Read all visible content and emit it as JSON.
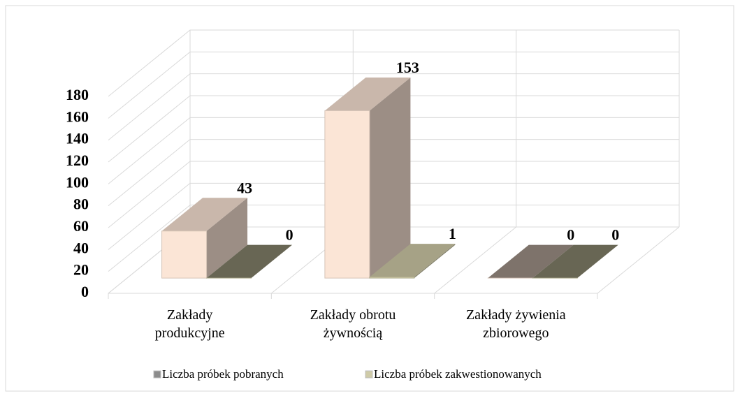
{
  "chart_data": {
    "type": "bar3d",
    "categories": [
      [
        "Zakłady",
        "produkcyjne"
      ],
      [
        "Zakłady obrotu",
        "żywnością"
      ],
      [
        "Zakłady żywienia",
        "zbiorowego"
      ]
    ],
    "series": [
      {
        "name": "Liczba próbek pobranych",
        "color": "#fbe5d6",
        "values": [
          43,
          153,
          0
        ]
      },
      {
        "name": "Liczba próbek zakwestionowanych",
        "color": "#cfcba8",
        "values": [
          0,
          1,
          0
        ]
      }
    ],
    "ylim": [
      0,
      180
    ],
    "yticks": [
      0,
      20,
      40,
      60,
      80,
      100,
      120,
      140,
      160,
      180
    ],
    "grid": true,
    "legend": "bottom"
  }
}
